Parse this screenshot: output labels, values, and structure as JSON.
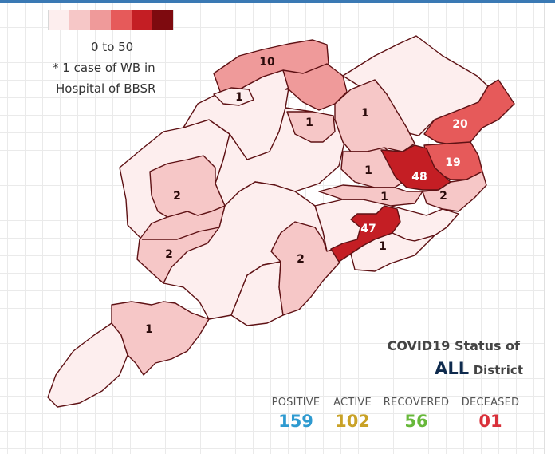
{
  "legend": {
    "colors": [
      "#fdeeee",
      "#f6c7c7",
      "#ef9a9a",
      "#e65a5a",
      "#c41e24",
      "#7e0a0f"
    ],
    "range_label": "0 to 50",
    "note_line1": "* 1 case of WB in",
    "note_line2": "Hospital of BBSR"
  },
  "map_labels": [
    "10",
    "1",
    "1",
    "1",
    "20",
    "19",
    "1",
    "48",
    "2",
    "2",
    "1",
    "2",
    "47",
    "1",
    "2",
    "1"
  ],
  "status": {
    "title": "COVID19 Status of",
    "scope": "ALL",
    "scope_suffix": "District",
    "stats": [
      {
        "label": "POSITIVE",
        "value": "159",
        "color": "#2e9ad0"
      },
      {
        "label": "ACTIVE",
        "value": "102",
        "color": "#c9a227"
      },
      {
        "label": "RECOVERED",
        "value": "56",
        "color": "#67b83a"
      },
      {
        "label": "DECEASED",
        "value": "01",
        "color": "#d9303a"
      }
    ]
  },
  "colors": {
    "border": "#5e1114",
    "accent_bar": "#3a79b4"
  }
}
